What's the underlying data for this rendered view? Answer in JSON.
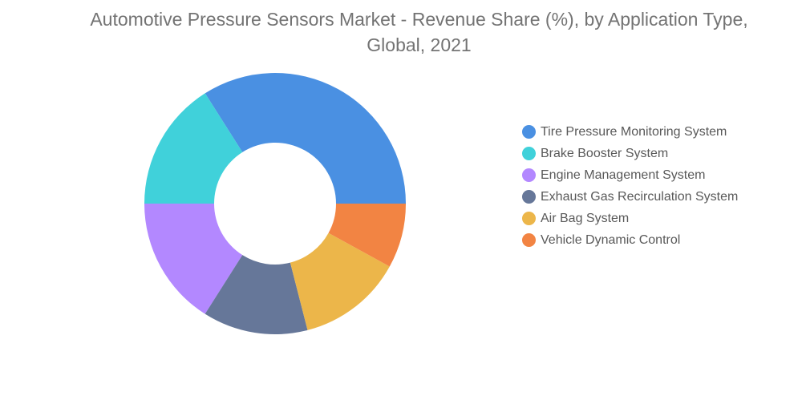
{
  "chart_data": {
    "type": "pie",
    "title": "Automotive Pressure Sensors Market - Revenue Share (%), by Application Type, Global, 2021",
    "legend_position": "right",
    "donut": true,
    "series": [
      {
        "name": "Tire Pressure Monitoring System",
        "value": 34,
        "color": "#4A90E2"
      },
      {
        "name": "Brake Booster System",
        "value": 16,
        "color": "#40D1DA"
      },
      {
        "name": "Engine Management System",
        "value": 16,
        "color": "#B388FF"
      },
      {
        "name": "Exhaust Gas Recirculation System",
        "value": 13,
        "color": "#667799"
      },
      {
        "name": "Air Bag System",
        "value": 13,
        "color": "#ECB64A"
      },
      {
        "name": "Vehicle Dynamic Control",
        "value": 8,
        "color": "#F28443"
      }
    ]
  }
}
